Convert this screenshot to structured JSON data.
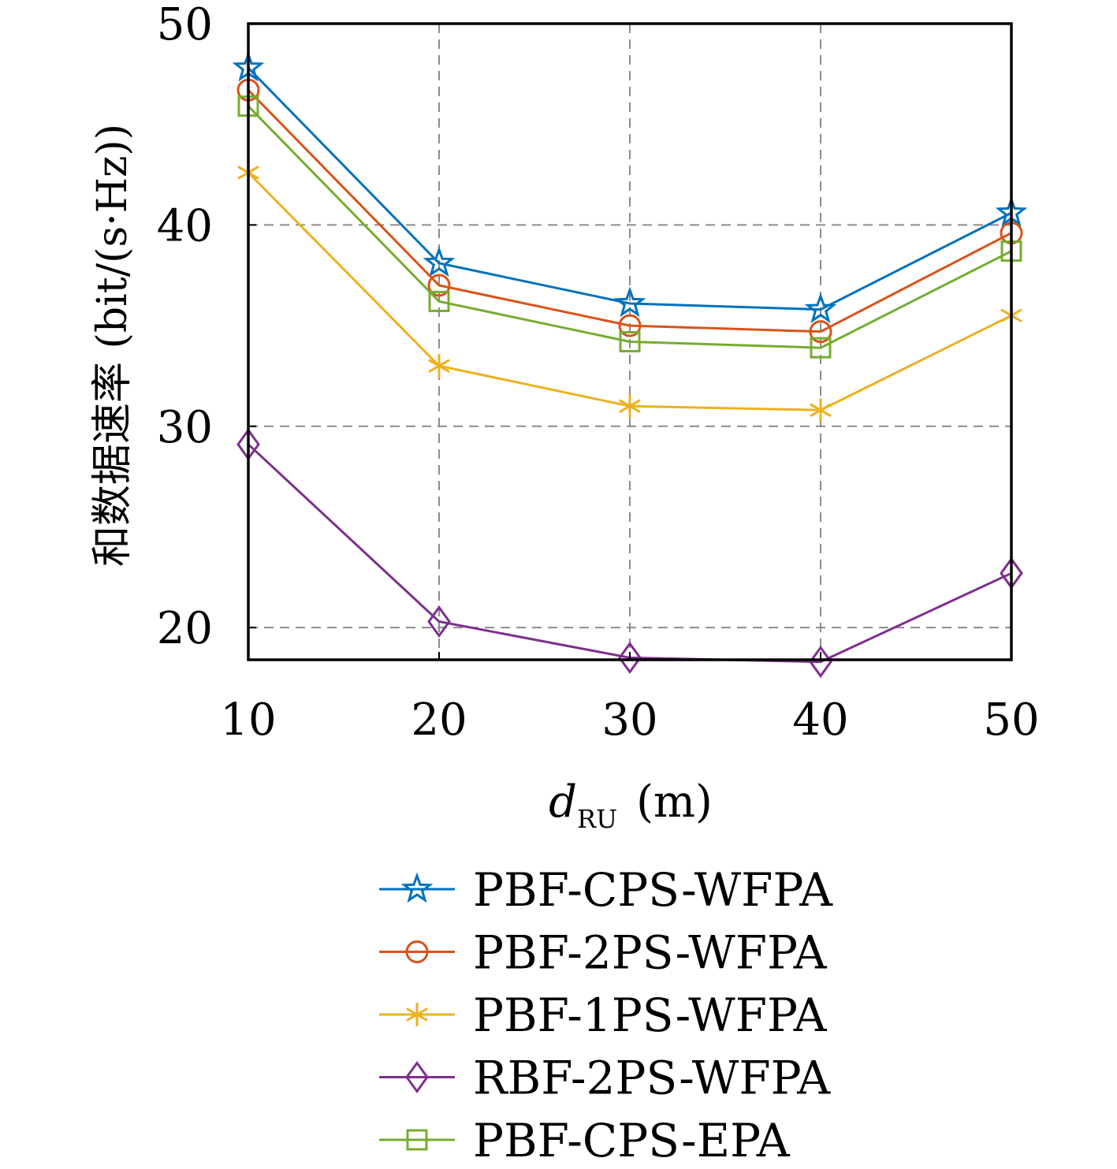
{
  "chart_data": {
    "type": "line",
    "title": "",
    "xlabel": "d",
    "xlabel_subscript": "RU",
    "xlabel_unit": "(m)",
    "ylabel": "和数据速率 (bit/(s·Hz))",
    "x": [
      10,
      20,
      30,
      40,
      50
    ],
    "xlim": [
      10,
      50
    ],
    "ylim": [
      18.4,
      50
    ],
    "xticks": [
      10,
      20,
      30,
      40,
      50
    ],
    "yticks": [
      20,
      30,
      40,
      50
    ],
    "grid": true,
    "legend_position": "below",
    "series": [
      {
        "name": "PBF-CPS-WFPA",
        "color": "#0072BD",
        "marker": "star-icon",
        "values": [
          47.8,
          38.1,
          36.1,
          35.8,
          40.6
        ]
      },
      {
        "name": "PBF-2PS-WFPA",
        "color": "#D95319",
        "marker": "circle-icon",
        "values": [
          46.7,
          37.0,
          35.0,
          34.7,
          39.6
        ]
      },
      {
        "name": "PBF-1PS-WFPA",
        "color": "#EDB120",
        "marker": "asterisk-icon",
        "values": [
          42.6,
          33.0,
          31.0,
          30.8,
          35.5
        ]
      },
      {
        "name": "RBF-2PS-WFPA",
        "color": "#7E2F8E",
        "marker": "diamond-icon",
        "values": [
          29.1,
          20.3,
          18.5,
          18.3,
          22.7
        ]
      },
      {
        "name": "PBF-CPS-EPA",
        "color": "#77AC30",
        "marker": "square-icon",
        "values": [
          45.9,
          36.2,
          34.2,
          33.9,
          38.7
        ]
      }
    ]
  }
}
